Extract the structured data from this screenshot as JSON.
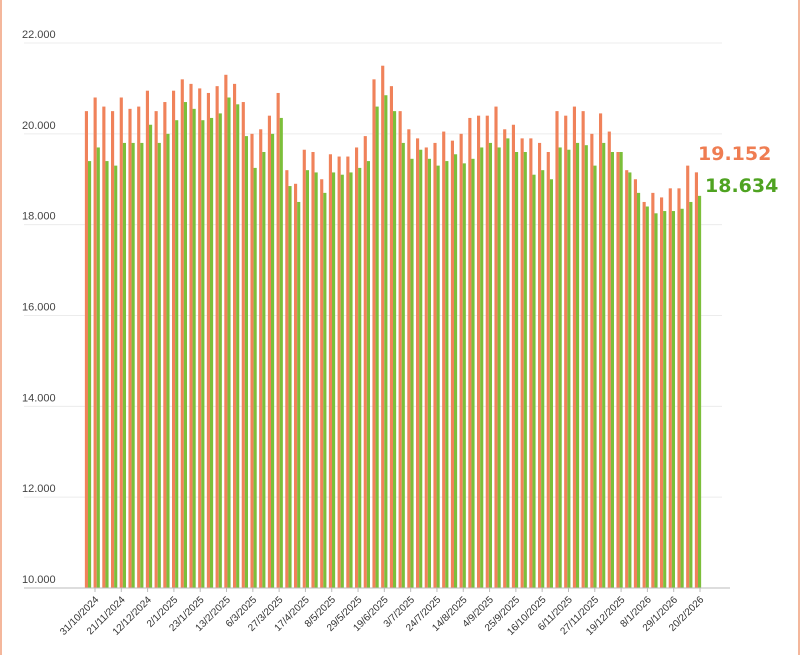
{
  "chart_data": {
    "type": "bar",
    "y_axis": {
      "min": 10000,
      "max": 22000,
      "tick_values": [
        10000,
        12000,
        14000,
        16000,
        18000,
        20000,
        22000
      ]
    },
    "y_tick_labels": [
      "10.000",
      "12.000",
      "14.000",
      "16.000",
      "18.000",
      "20.000",
      "22.000"
    ],
    "x_tick_labels": [
      "31/10/2024",
      "21/11/2024",
      "12/12/2024",
      "2/1/2025",
      "23/1/2025",
      "13/2/2025",
      "6/3/2025",
      "27/3/2025",
      "17/4/2025",
      "8/5/2025",
      "29/5/2025",
      "19/6/2025",
      "3/7/2025",
      "24/7/2025",
      "14/8/2025",
      "4/9/2025",
      "25/9/2025",
      "16/10/2025",
      "6/11/2025",
      "27/11/2025",
      "19/12/2025",
      "8/1/2026",
      "29/1/2026",
      "20/2/2026"
    ],
    "series": [
      {
        "color": "#f0825a",
        "values": [
          20500,
          20800,
          20600,
          20500,
          20800,
          20550,
          20600,
          20950,
          20500,
          20700,
          20950,
          21200,
          21100,
          21000,
          20900,
          21050,
          21300,
          21100,
          20700,
          20000,
          20100,
          20400,
          20900,
          19200,
          18900,
          19650,
          19600,
          19000,
          19550,
          19500,
          19500,
          19700,
          19950,
          21200,
          21500,
          21050,
          20500,
          20100,
          19900,
          19700,
          19800,
          20050,
          19850,
          20000,
          20350,
          20400,
          20400,
          20600,
          20100,
          20200,
          19900,
          19900,
          19800,
          19600,
          20500,
          20400,
          20600,
          20500,
          20000,
          20450,
          20050,
          19600,
          19200,
          19000,
          18500,
          18700,
          18600,
          18800,
          18800,
          19300,
          19152
        ]
      },
      {
        "color": "#7cbf3a",
        "values": [
          19400,
          19700,
          19400,
          19300,
          19800,
          19800,
          19800,
          20200,
          19800,
          20000,
          20300,
          20700,
          20550,
          20300,
          20350,
          20450,
          20800,
          20650,
          19950,
          19250,
          19600,
          20000,
          20350,
          18850,
          18500,
          19200,
          19150,
          18700,
          19150,
          19100,
          19150,
          19250,
          19400,
          20600,
          20850,
          20500,
          19800,
          19450,
          19650,
          19450,
          19300,
          19400,
          19550,
          19350,
          19450,
          19700,
          19800,
          19700,
          19900,
          19600,
          19600,
          19100,
          19200,
          19000,
          19700,
          19650,
          19800,
          19750,
          19300,
          19800,
          19600,
          19600,
          19150,
          18700,
          18400,
          18250,
          18300,
          18300,
          18350,
          18500,
          18634
        ]
      }
    ],
    "last_value_labels": [
      {
        "text": "19.152",
        "color": "#ef7d52"
      },
      {
        "text": "18.634",
        "color": "#4fa321"
      }
    ],
    "grid": true
  }
}
